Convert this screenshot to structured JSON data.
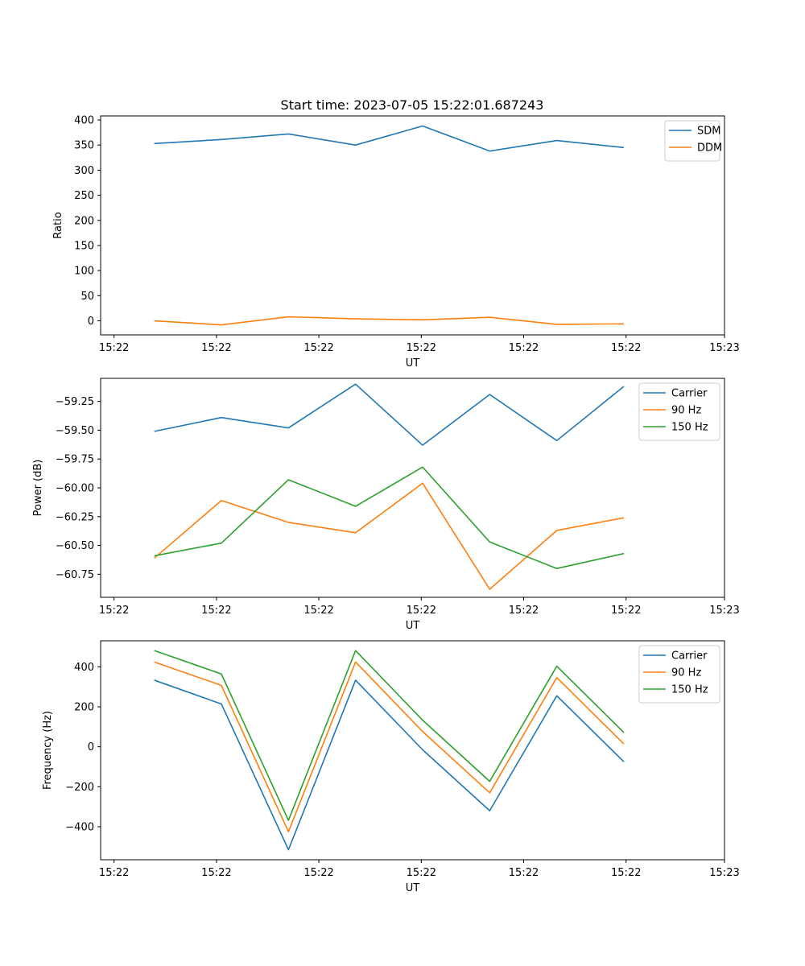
{
  "figure": {
    "title": "Start time: 2023-07-05 15:22:01.687243"
  },
  "chart_data": [
    {
      "type": "line",
      "xlabel": "UT",
      "ylabel": "Ratio",
      "x": [
        1,
        2,
        3,
        4,
        5,
        6,
        7,
        8
      ],
      "xlim": [
        0.2,
        9.5
      ],
      "xticks": [
        0.4,
        1.927,
        3.453,
        4.98,
        6.506,
        8.033,
        9.5
      ],
      "xtick_labels": [
        "15:22",
        "15:22",
        "15:22",
        "15:22",
        "15:22",
        "15:22",
        "15:23"
      ],
      "ylim": [
        -28,
        408
      ],
      "yticks": [
        0,
        50,
        100,
        150,
        200,
        250,
        300,
        350,
        400
      ],
      "ytick_labels": [
        "0",
        "50",
        "100",
        "150",
        "200",
        "250",
        "300",
        "350",
        "400"
      ],
      "legend_position": "top-right",
      "series": [
        {
          "name": "SDM",
          "color": "#1f77b4",
          "values": [
            353,
            361,
            372,
            350,
            388,
            338,
            359,
            345
          ]
        },
        {
          "name": "DDM",
          "color": "#ff7f0e",
          "values": [
            0,
            -8,
            8,
            4,
            2,
            7,
            -7,
            -6
          ]
        }
      ]
    },
    {
      "type": "line",
      "xlabel": "UT",
      "ylabel": "Power (dB)",
      "x": [
        1,
        2,
        3,
        4,
        5,
        6,
        7,
        8
      ],
      "xlim": [
        0.2,
        9.5
      ],
      "xticks": [
        0.4,
        1.927,
        3.453,
        4.98,
        6.506,
        8.033,
        9.5
      ],
      "xtick_labels": [
        "15:22",
        "15:22",
        "15:22",
        "15:22",
        "15:22",
        "15:22",
        "15:23"
      ],
      "ylim": [
        -60.95,
        -59.05
      ],
      "yticks": [
        -60.75,
        -60.5,
        -60.25,
        -60.0,
        -59.75,
        -59.5,
        -59.25
      ],
      "ytick_labels": [
        "−60.75",
        "−60.50",
        "−60.25",
        "−60.00",
        "−59.75",
        "−59.50",
        "−59.25"
      ],
      "legend_position": "top-right",
      "series": [
        {
          "name": "Carrier",
          "color": "#1f77b4",
          "values": [
            -59.51,
            -59.39,
            -59.48,
            -59.1,
            -59.63,
            -59.19,
            -59.59,
            -59.12
          ]
        },
        {
          "name": "90 Hz",
          "color": "#ff7f0e",
          "values": [
            -60.61,
            -60.11,
            -60.3,
            -60.39,
            -59.96,
            -60.88,
            -60.37,
            -60.26
          ]
        },
        {
          "name": "150 Hz",
          "color": "#2ca02c",
          "values": [
            -60.59,
            -60.48,
            -59.93,
            -60.16,
            -59.82,
            -60.47,
            -60.7,
            -60.57
          ]
        }
      ]
    },
    {
      "type": "line",
      "xlabel": "UT",
      "ylabel": "Frequency (Hz)",
      "x": [
        1,
        2,
        3,
        4,
        5,
        6,
        7,
        8
      ],
      "xlim": [
        0.2,
        9.5
      ],
      "xticks": [
        0.4,
        1.927,
        3.453,
        4.98,
        6.506,
        8.033,
        9.5
      ],
      "xtick_labels": [
        "15:22",
        "15:22",
        "15:22",
        "15:22",
        "15:22",
        "15:22",
        "15:23"
      ],
      "ylim": [
        -565,
        530
      ],
      "yticks": [
        -400,
        -200,
        0,
        200,
        400
      ],
      "ytick_labels": [
        "−400",
        "−200",
        "0",
        "200",
        "400"
      ],
      "legend_position": "top-right",
      "series": [
        {
          "name": "Carrier",
          "color": "#1f77b4",
          "values": [
            333,
            214,
            -515,
            333,
            -15,
            -320,
            255,
            -75
          ]
        },
        {
          "name": "90 Hz",
          "color": "#ff7f0e",
          "values": [
            424,
            307,
            -425,
            424,
            76,
            -230,
            346,
            14
          ]
        },
        {
          "name": "150 Hz",
          "color": "#2ca02c",
          "values": [
            481,
            364,
            -368,
            481,
            133,
            -173,
            403,
            71
          ]
        }
      ]
    }
  ]
}
